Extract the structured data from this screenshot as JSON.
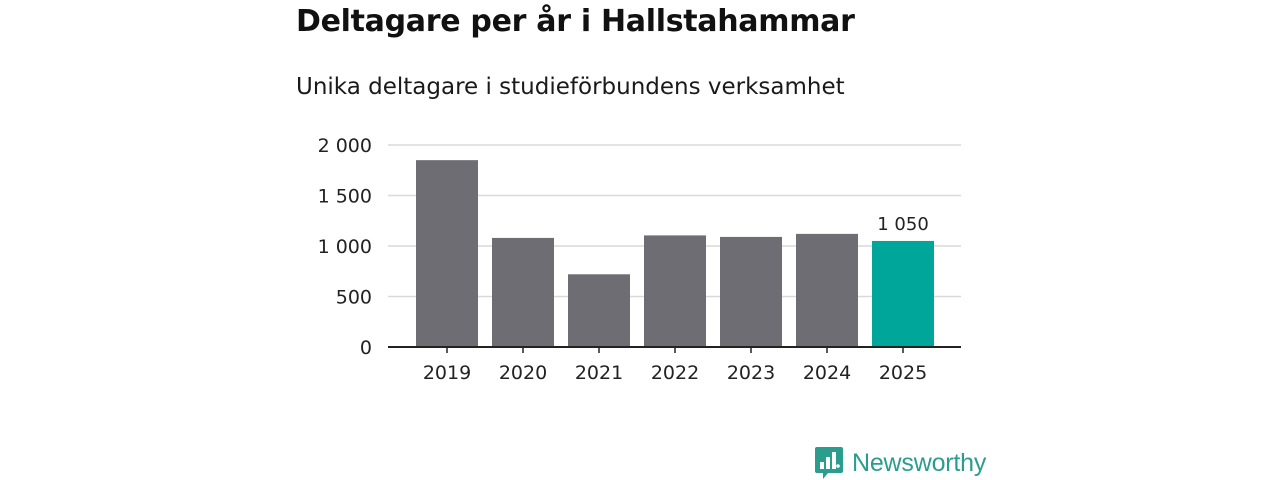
{
  "header": {
    "title": "Deltagare per år i Hallstahammar",
    "subtitle": "Unika deltagare i studieförbundens verksamhet"
  },
  "chart_data": {
    "type": "bar",
    "title": "Deltagare per år i Hallstahammar",
    "subtitle": "Unika deltagare i studieförbundens verksamhet",
    "xlabel": "",
    "ylabel": "",
    "categories": [
      "2019",
      "2020",
      "2021",
      "2022",
      "2023",
      "2024",
      "2025"
    ],
    "values": [
      1850,
      1080,
      720,
      1105,
      1090,
      1120,
      1050
    ],
    "ylim": [
      0,
      2000
    ],
    "yticks": [
      0,
      500,
      1000,
      1500,
      2000
    ],
    "ytick_labels": [
      "0",
      "500",
      "1 000",
      "1 500",
      "2 000"
    ],
    "grid": true,
    "highlight_index": 6,
    "data_labels": [
      {
        "index": 6,
        "text": "1 050"
      }
    ],
    "colors": {
      "bar": "#6e6d74",
      "highlight": "#00a699",
      "grid": "#d9d9d9",
      "axis": "#222222"
    }
  },
  "brand": {
    "name": "Newsworthy",
    "icon": "newsworthy-logo-icon",
    "color": "#2a9d8f"
  }
}
